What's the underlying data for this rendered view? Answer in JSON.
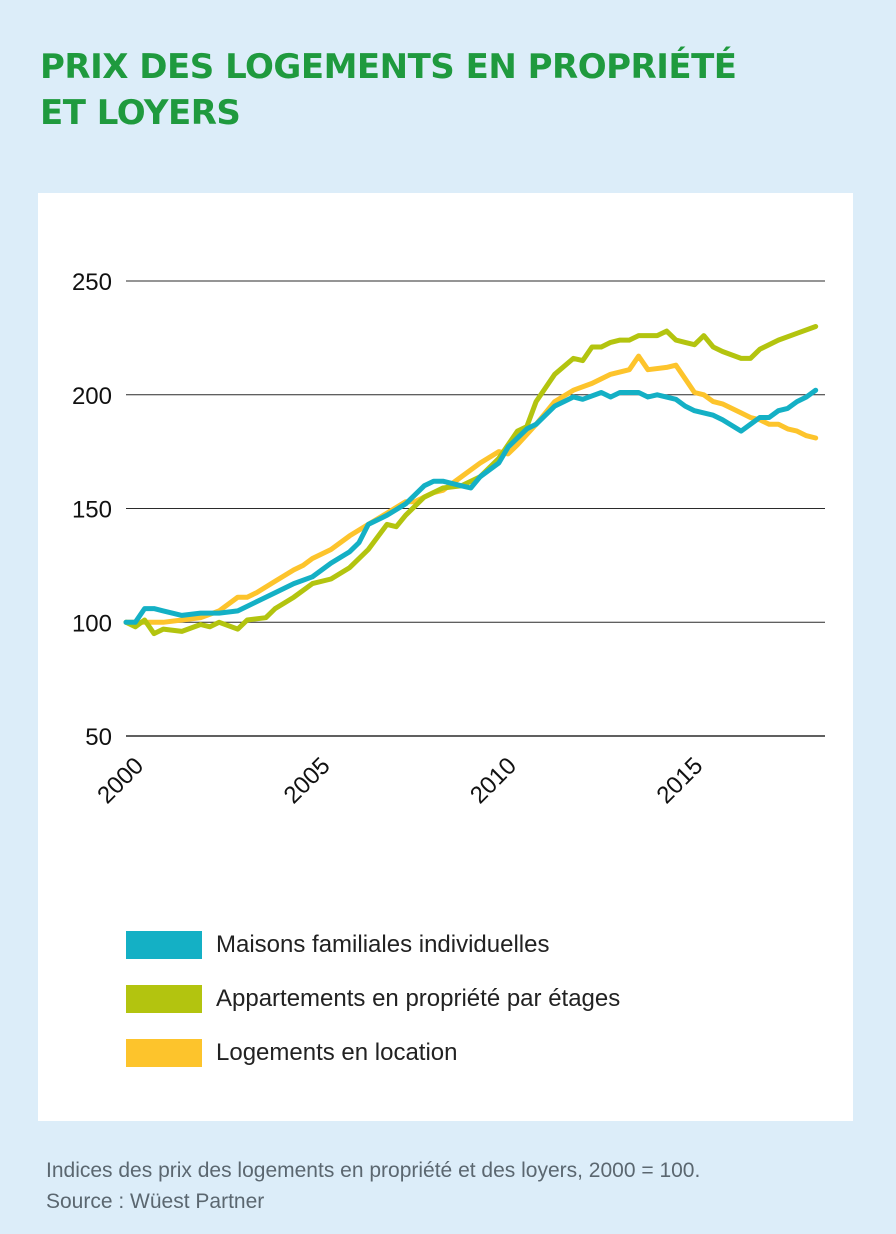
{
  "title": {
    "line1": "PRIX DES LOGEMENTS EN PROPRIÉTÉ",
    "line2": "ET LOYERS"
  },
  "caption": {
    "note": "Indices des prix des logements en propriété et des loyers, 2000 = 100.",
    "source": "Source : Wüest Partner"
  },
  "chart_data": {
    "type": "line",
    "title": "",
    "xlabel": "",
    "ylabel": "",
    "ylim": [
      50,
      250
    ],
    "xlim": [
      2000,
      2018.75
    ],
    "yticks": [
      50,
      100,
      150,
      200,
      250
    ],
    "xticks": [
      "2000",
      "2005",
      "2010",
      "2015"
    ],
    "grid": "horizontal",
    "legend_position": "bottom",
    "series": [
      {
        "name": "Maisons familiales individuelles",
        "color": "#14b0c5",
        "points": [
          [
            2000,
            100
          ],
          [
            2000.25,
            100
          ],
          [
            2000.5,
            106
          ],
          [
            2000.75,
            106
          ],
          [
            2001,
            105
          ],
          [
            2001.5,
            103
          ],
          [
            2002,
            104
          ],
          [
            2002.25,
            104
          ],
          [
            2002.5,
            104
          ],
          [
            2003,
            105
          ],
          [
            2003.5,
            109
          ],
          [
            2004,
            113
          ],
          [
            2004.5,
            117
          ],
          [
            2005,
            120
          ],
          [
            2005.5,
            126
          ],
          [
            2006,
            131
          ],
          [
            2006.25,
            135
          ],
          [
            2006.5,
            143
          ],
          [
            2007,
            147
          ],
          [
            2007.5,
            152
          ],
          [
            2008,
            160
          ],
          [
            2008.25,
            162
          ],
          [
            2008.5,
            162
          ],
          [
            2009,
            160
          ],
          [
            2009.25,
            159
          ],
          [
            2009.5,
            164
          ],
          [
            2010,
            170
          ],
          [
            2010.25,
            177
          ],
          [
            2010.75,
            185
          ],
          [
            2011,
            187
          ],
          [
            2011.5,
            195
          ],
          [
            2012,
            199
          ],
          [
            2012.25,
            198
          ],
          [
            2012.75,
            201
          ],
          [
            2013,
            199
          ],
          [
            2013.25,
            201
          ],
          [
            2013.75,
            201
          ],
          [
            2014,
            199
          ],
          [
            2014.25,
            200
          ],
          [
            2014.75,
            198
          ],
          [
            2015,
            195
          ],
          [
            2015.25,
            193
          ],
          [
            2015.75,
            191
          ],
          [
            2016,
            189
          ],
          [
            2016.5,
            184
          ],
          [
            2016.75,
            187
          ],
          [
            2017,
            190
          ],
          [
            2017.25,
            190
          ],
          [
            2017.5,
            193
          ],
          [
            2017.75,
            194
          ],
          [
            2018,
            197
          ],
          [
            2018.25,
            199
          ],
          [
            2018.5,
            202
          ]
        ]
      },
      {
        "name": "Appartements en propriété par étages",
        "color": "#b3c40f",
        "points": [
          [
            2000,
            100
          ],
          [
            2000.25,
            98
          ],
          [
            2000.5,
            101
          ],
          [
            2000.75,
            95
          ],
          [
            2001,
            97
          ],
          [
            2001.5,
            96
          ],
          [
            2002,
            99
          ],
          [
            2002.25,
            98
          ],
          [
            2002.5,
            100
          ],
          [
            2003,
            97
          ],
          [
            2003.25,
            101
          ],
          [
            2003.75,
            102
          ],
          [
            2004,
            106
          ],
          [
            2004.5,
            111
          ],
          [
            2005,
            117
          ],
          [
            2005.5,
            119
          ],
          [
            2006,
            124
          ],
          [
            2006.5,
            132
          ],
          [
            2007,
            143
          ],
          [
            2007.25,
            142
          ],
          [
            2007.5,
            147
          ],
          [
            2008,
            155
          ],
          [
            2008.5,
            159
          ],
          [
            2009,
            160
          ],
          [
            2009.5,
            164
          ],
          [
            2010,
            172
          ],
          [
            2010.5,
            184
          ],
          [
            2010.75,
            186
          ],
          [
            2011,
            197
          ],
          [
            2011.5,
            209
          ],
          [
            2012,
            216
          ],
          [
            2012.25,
            215
          ],
          [
            2012.5,
            221
          ],
          [
            2012.75,
            221
          ],
          [
            2013,
            223
          ],
          [
            2013.25,
            224
          ],
          [
            2013.5,
            224
          ],
          [
            2013.75,
            226
          ],
          [
            2014,
            226
          ],
          [
            2014.25,
            226
          ],
          [
            2014.5,
            228
          ],
          [
            2014.75,
            224
          ],
          [
            2015,
            223
          ],
          [
            2015.25,
            222
          ],
          [
            2015.5,
            226
          ],
          [
            2015.75,
            221
          ],
          [
            2016,
            219
          ],
          [
            2016.5,
            216
          ],
          [
            2016.75,
            216
          ],
          [
            2017,
            220
          ],
          [
            2017.5,
            224
          ],
          [
            2018,
            227
          ],
          [
            2018.5,
            230
          ]
        ]
      },
      {
        "name": "Logements en location",
        "color": "#fdc42c",
        "points": [
          [
            2000,
            100
          ],
          [
            2000.5,
            100
          ],
          [
            2001,
            100
          ],
          [
            2001.5,
            101
          ],
          [
            2002,
            102
          ],
          [
            2002.5,
            105
          ],
          [
            2003,
            111
          ],
          [
            2003.25,
            111
          ],
          [
            2003.5,
            113
          ],
          [
            2004,
            118
          ],
          [
            2004.5,
            123
          ],
          [
            2004.75,
            125
          ],
          [
            2005,
            128
          ],
          [
            2005.5,
            132
          ],
          [
            2006,
            138
          ],
          [
            2006.5,
            143
          ],
          [
            2007,
            148
          ],
          [
            2007.5,
            153
          ],
          [
            2007.75,
            153
          ],
          [
            2008,
            155
          ],
          [
            2008.25,
            157
          ],
          [
            2008.5,
            158
          ],
          [
            2009,
            164
          ],
          [
            2009.5,
            170
          ],
          [
            2010,
            175
          ],
          [
            2010.25,
            174
          ],
          [
            2010.5,
            178
          ],
          [
            2011,
            187
          ],
          [
            2011.5,
            197
          ],
          [
            2012,
            202
          ],
          [
            2012.5,
            205
          ],
          [
            2013,
            209
          ],
          [
            2013.5,
            211
          ],
          [
            2013.75,
            217
          ],
          [
            2014,
            211
          ],
          [
            2014.5,
            212
          ],
          [
            2014.75,
            213
          ],
          [
            2015,
            207
          ],
          [
            2015.25,
            201
          ],
          [
            2015.5,
            200
          ],
          [
            2015.75,
            197
          ],
          [
            2016,
            196
          ],
          [
            2016.5,
            192
          ],
          [
            2016.75,
            190
          ],
          [
            2017,
            189
          ],
          [
            2017.25,
            187
          ],
          [
            2017.5,
            187
          ],
          [
            2017.75,
            185
          ],
          [
            2018,
            184
          ],
          [
            2018.25,
            182
          ],
          [
            2018.5,
            181
          ]
        ]
      }
    ]
  }
}
